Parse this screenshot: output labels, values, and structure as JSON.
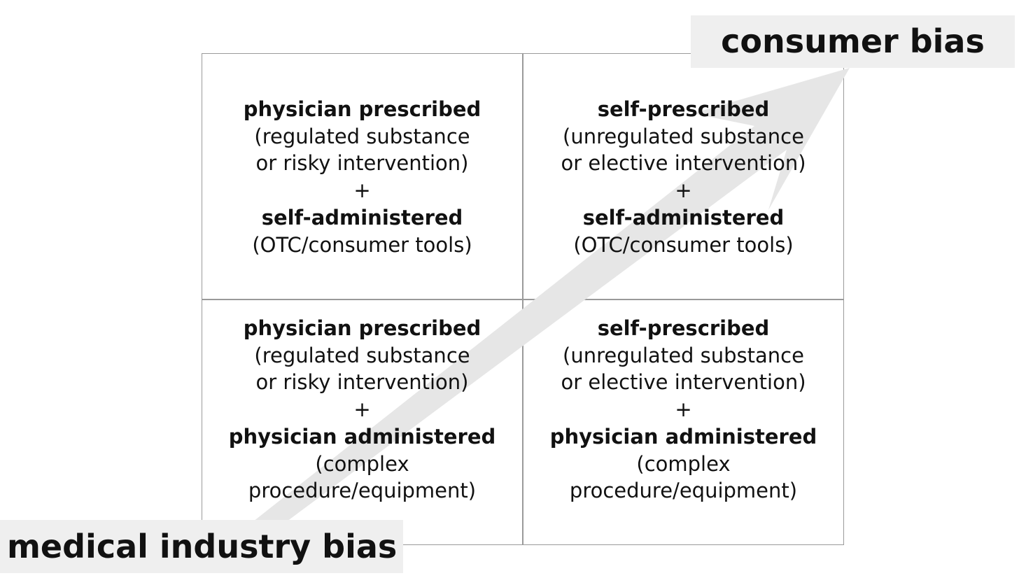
{
  "labels": {
    "consumer_bias": "consumer bias",
    "medical_industry_bias": "medical industry bias"
  },
  "quadrants": {
    "top_left": {
      "prescribe_heading": "physician prescribed",
      "prescribe_detail_1": "(regulated substance",
      "prescribe_detail_2": "or risky intervention)",
      "plus": "+",
      "administer_heading": "self-administered",
      "administer_detail_1": "(OTC/consumer tools)"
    },
    "top_right": {
      "prescribe_heading": "self-prescribed",
      "prescribe_detail_1": "(unregulated substance",
      "prescribe_detail_2": "or elective intervention)",
      "plus": "+",
      "administer_heading": "self-administered",
      "administer_detail_1": "(OTC/consumer tools)"
    },
    "bottom_left": {
      "prescribe_heading": "physician prescribed",
      "prescribe_detail_1": "(regulated substance",
      "prescribe_detail_2": "or risky intervention)",
      "plus": "+",
      "administer_heading": "physician administered",
      "administer_detail_1": "(complex",
      "administer_detail_2": "procedure/equipment)"
    },
    "bottom_right": {
      "prescribe_heading": "self-prescribed",
      "prescribe_detail_1": "(unregulated substance",
      "prescribe_detail_2": "or elective intervention)",
      "plus": "+",
      "administer_heading": "physician administered",
      "administer_detail_1": "(complex",
      "administer_detail_2": "procedure/equipment)"
    }
  },
  "colors": {
    "background": "#ffffff",
    "grid_lines": "#9a9a9a",
    "arrow": "#e6e6e6",
    "label_background": "#efefef",
    "text": "#111111"
  },
  "arrow": {
    "direction": "from medical industry bias toward consumer bias"
  }
}
